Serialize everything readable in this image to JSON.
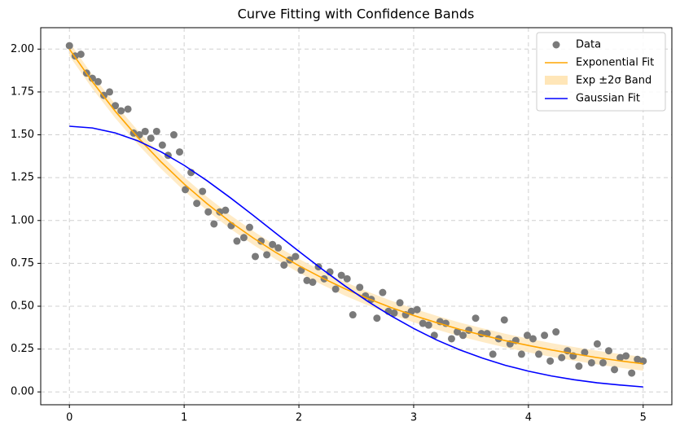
{
  "chart_data": {
    "type": "curve_fit",
    "title": "Curve Fitting with Confidence Bands",
    "xlim": [
      -0.25,
      5.25
    ],
    "ylim": [
      -0.075,
      2.125
    ],
    "xticks": [
      0,
      1,
      2,
      3,
      4,
      5
    ],
    "yticks": [
      {
        "value": 0,
        "label": "0.00"
      },
      {
        "value": 0.25,
        "label": "0.25"
      },
      {
        "value": 0.5,
        "label": "0.50"
      },
      {
        "value": 0.75,
        "label": "0.75"
      },
      {
        "value": 1,
        "label": "1.00"
      },
      {
        "value": 1.25,
        "label": "1.25"
      },
      {
        "value": 1.5,
        "label": "1.50"
      },
      {
        "value": 1.75,
        "label": "1.75"
      },
      {
        "value": 2,
        "label": "2.00"
      }
    ],
    "grid": true,
    "legend": "upper right",
    "curve_x": [
      0,
      0.2,
      0.4,
      0.6,
      0.8,
      1.0,
      1.2,
      1.4,
      1.6,
      1.8,
      2.0,
      2.2,
      2.4,
      2.6,
      2.8,
      3.0,
      3.2,
      3.4,
      3.6,
      3.8,
      4.0,
      4.2,
      4.4,
      4.6,
      4.8,
      5.0
    ],
    "series": [
      {
        "name": "Data",
        "kind": "scatter",
        "color": "#7a7a7a",
        "x": [
          0,
          0.05,
          0.1,
          0.15,
          0.2,
          0.25,
          0.3,
          0.35,
          0.4,
          0.45,
          0.51,
          0.56,
          0.61,
          0.66,
          0.71,
          0.76,
          0.81,
          0.86,
          0.91,
          0.96,
          1.01,
          1.06,
          1.11,
          1.16,
          1.21,
          1.26,
          1.31,
          1.36,
          1.41,
          1.46,
          1.52,
          1.57,
          1.62,
          1.67,
          1.72,
          1.77,
          1.82,
          1.87,
          1.92,
          1.97,
          2.02,
          2.07,
          2.12,
          2.17,
          2.22,
          2.27,
          2.32,
          2.37,
          2.42,
          2.47,
          2.53,
          2.58,
          2.63,
          2.68,
          2.73,
          2.78,
          2.83,
          2.88,
          2.93,
          2.98,
          3.03,
          3.08,
          3.13,
          3.18,
          3.23,
          3.28,
          3.33,
          3.38,
          3.43,
          3.48,
          3.54,
          3.59,
          3.64,
          3.69,
          3.74,
          3.79,
          3.84,
          3.89,
          3.94,
          3.99,
          4.04,
          4.09,
          4.14,
          4.19,
          4.24,
          4.29,
          4.34,
          4.39,
          4.44,
          4.49,
          4.55,
          4.6,
          4.65,
          4.7,
          4.75,
          4.8,
          4.85,
          4.9,
          4.95,
          5.0
        ],
        "values": [
          2.02,
          1.96,
          1.97,
          1.86,
          1.83,
          1.81,
          1.73,
          1.75,
          1.67,
          1.64,
          1.65,
          1.51,
          1.5,
          1.52,
          1.48,
          1.52,
          1.44,
          1.38,
          1.5,
          1.4,
          1.18,
          1.28,
          1.1,
          1.17,
          1.05,
          0.98,
          1.05,
          1.06,
          0.97,
          0.88,
          0.9,
          0.96,
          0.79,
          0.88,
          0.8,
          0.86,
          0.84,
          0.74,
          0.77,
          0.79,
          0.71,
          0.65,
          0.64,
          0.73,
          0.66,
          0.7,
          0.6,
          0.68,
          0.66,
          0.45,
          0.61,
          0.56,
          0.54,
          0.43,
          0.58,
          0.47,
          0.46,
          0.52,
          0.45,
          0.47,
          0.48,
          0.4,
          0.39,
          0.33,
          0.41,
          0.4,
          0.31,
          0.35,
          0.33,
          0.36,
          0.43,
          0.34,
          0.34,
          0.22,
          0.31,
          0.42,
          0.28,
          0.3,
          0.22,
          0.33,
          0.31,
          0.22,
          0.33,
          0.18,
          0.35,
          0.2,
          0.24,
          0.21,
          0.15,
          0.23,
          0.17,
          0.28,
          0.17,
          0.24,
          0.13,
          0.2,
          0.21,
          0.11,
          0.19,
          0.18
        ]
      },
      {
        "name": "Exponential Fit",
        "kind": "line",
        "color": "#ffa500",
        "values": [
          2.0,
          1.81,
          1.637,
          1.482,
          1.341,
          1.213,
          1.098,
          0.993,
          0.899,
          0.813,
          0.736,
          0.666,
          0.602,
          0.545,
          0.493,
          0.446,
          0.404,
          0.365,
          0.331,
          0.299,
          0.271,
          0.245,
          0.222,
          0.2,
          0.181,
          0.164
        ]
      },
      {
        "name": "Exp ±2σ Band",
        "kind": "band",
        "color": "#ffe6b8",
        "lower": [
          1.96,
          1.77,
          1.597,
          1.442,
          1.301,
          1.173,
          1.058,
          0.953,
          0.859,
          0.773,
          0.696,
          0.626,
          0.562,
          0.505,
          0.453,
          0.406,
          0.364,
          0.325,
          0.291,
          0.259,
          0.231,
          0.205,
          0.182,
          0.16,
          0.141,
          0.124
        ],
        "upper": [
          2.04,
          1.85,
          1.677,
          1.522,
          1.381,
          1.253,
          1.138,
          1.033,
          0.939,
          0.853,
          0.776,
          0.706,
          0.642,
          0.585,
          0.533,
          0.486,
          0.444,
          0.405,
          0.371,
          0.339,
          0.311,
          0.285,
          0.262,
          0.24,
          0.221,
          0.204
        ]
      },
      {
        "name": "Gaussian Fit",
        "kind": "line",
        "color": "#0000ff",
        "values": [
          1.55,
          1.54,
          1.511,
          1.464,
          1.4,
          1.322,
          1.232,
          1.134,
          1.031,
          0.925,
          0.82,
          0.717,
          0.619,
          0.528,
          0.445,
          0.37,
          0.303,
          0.246,
          0.197,
          0.155,
          0.121,
          0.093,
          0.071,
          0.053,
          0.04,
          0.029
        ]
      }
    ]
  }
}
